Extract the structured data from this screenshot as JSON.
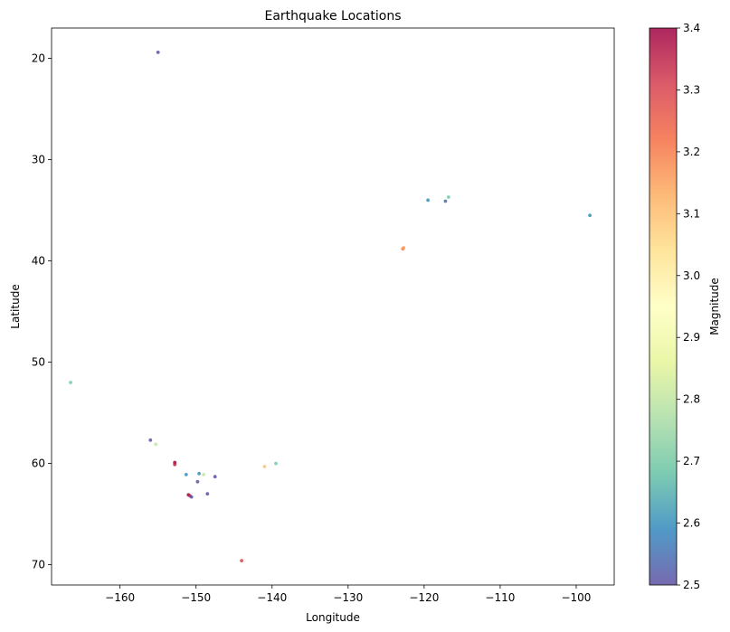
{
  "chart_data": {
    "type": "scatter",
    "title": "Earthquake Locations",
    "xlabel": "Longitude",
    "ylabel": "Latitude",
    "xlim": [
      -169,
      -95
    ],
    "ylim": [
      72,
      17
    ],
    "y_inverted": true,
    "grid": false,
    "x_ticks": [
      -160,
      -150,
      -140,
      -130,
      -120,
      -110,
      -100
    ],
    "y_ticks": [
      20,
      30,
      40,
      50,
      60,
      70
    ],
    "colorbar": {
      "label": "Magnitude",
      "min": 2.5,
      "max": 3.4,
      "ticks": [
        2.5,
        2.6,
        2.7,
        2.8,
        2.9,
        3.0,
        3.1,
        3.2,
        3.3,
        3.4
      ],
      "tick_labels": [
        "2.5",
        "2.6",
        "2.7",
        "2.8",
        "2.9",
        "3.0",
        "3.1",
        "3.2",
        "3.3",
        "3.4"
      ],
      "colormap": [
        "#5e4fa2",
        "#3288bd",
        "#66c2a5",
        "#abdda4",
        "#e6f598",
        "#ffffbf",
        "#fee08b",
        "#fdae61",
        "#f46d43",
        "#d53e4f",
        "#9e0142"
      ],
      "colormap_note": "Spectral reversed"
    },
    "points": [
      {
        "lon": -155.0,
        "lat": 19.4,
        "mag": 2.5
      },
      {
        "lon": -119.5,
        "lat": 34.0,
        "mag": 2.6
      },
      {
        "lon": -117.2,
        "lat": 34.1,
        "mag": 2.55
      },
      {
        "lon": -116.8,
        "lat": 33.7,
        "mag": 2.7
      },
      {
        "lon": -98.2,
        "lat": 35.5,
        "mag": 2.6
      },
      {
        "lon": -122.8,
        "lat": 38.8,
        "mag": 3.2
      },
      {
        "lon": -122.7,
        "lat": 38.7,
        "mag": 3.15
      },
      {
        "lon": -166.5,
        "lat": 52.0,
        "mag": 2.7
      },
      {
        "lon": -156.0,
        "lat": 57.7,
        "mag": 2.5
      },
      {
        "lon": -155.3,
        "lat": 58.1,
        "mag": 2.8
      },
      {
        "lon": -152.8,
        "lat": 59.9,
        "mag": 3.4
      },
      {
        "lon": -152.8,
        "lat": 60.1,
        "mag": 3.35
      },
      {
        "lon": -141.0,
        "lat": 60.3,
        "mag": 3.1
      },
      {
        "lon": -139.5,
        "lat": 60.0,
        "mag": 2.7
      },
      {
        "lon": -151.3,
        "lat": 61.1,
        "mag": 2.6
      },
      {
        "lon": -149.6,
        "lat": 61.0,
        "mag": 2.6
      },
      {
        "lon": -149.0,
        "lat": 61.1,
        "mag": 2.8
      },
      {
        "lon": -147.5,
        "lat": 61.3,
        "mag": 2.5
      },
      {
        "lon": -149.8,
        "lat": 61.8,
        "mag": 2.5
      },
      {
        "lon": -148.5,
        "lat": 63.0,
        "mag": 2.5
      },
      {
        "lon": -151.0,
        "lat": 63.1,
        "mag": 3.4
      },
      {
        "lon": -150.8,
        "lat": 63.2,
        "mag": 3.35
      },
      {
        "lon": -150.6,
        "lat": 63.3,
        "mag": 2.5
      },
      {
        "lon": -144.0,
        "lat": 69.6,
        "mag": 3.3
      }
    ]
  }
}
